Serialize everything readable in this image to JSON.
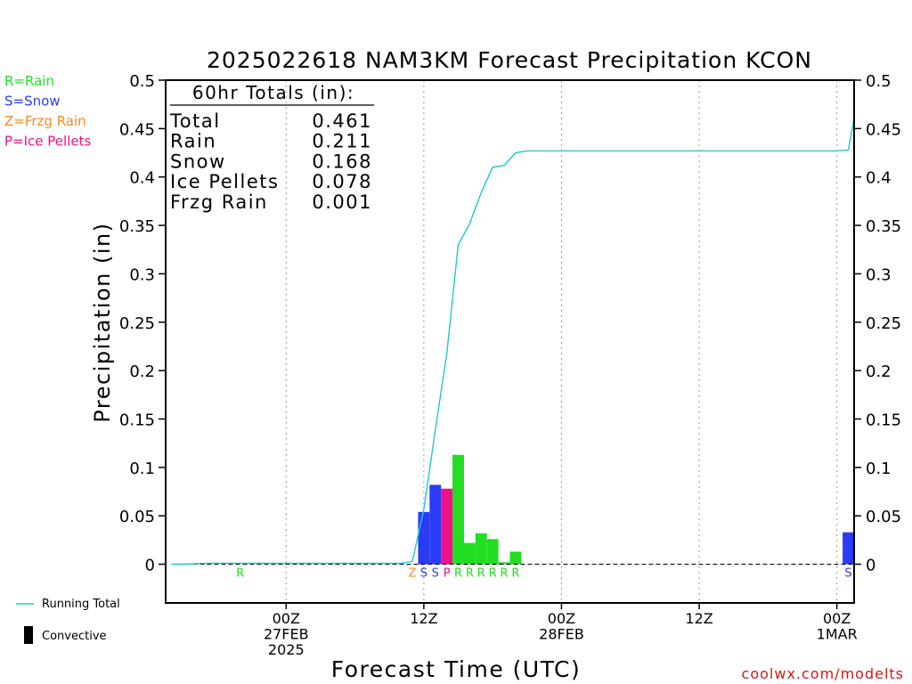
{
  "chart_data": {
    "type": "bar",
    "title": "2025022618 NAM3KM Forecast Precipitation KCON",
    "xlabel": "Forecast Time (UTC)",
    "ylabel": "Precipitation (in)",
    "ylim": [
      -0.04,
      0.5
    ],
    "yticks": [
      "0",
      "0.05",
      "0.1",
      "0.15",
      "0.2",
      "0.25",
      "0.3",
      "0.35",
      "0.4",
      "0.45",
      "0.5"
    ],
    "ytick_values": [
      0,
      0.05,
      0.1,
      0.15,
      0.2,
      0.25,
      0.3,
      0.35,
      0.4,
      0.45,
      0.5
    ],
    "x_hours_range": [
      -4.5,
      55.5
    ],
    "x_grid_hours": [
      6,
      18,
      30,
      42,
      54
    ],
    "x_labels": [
      {
        "hour": 6,
        "lines": [
          "00Z",
          "27FEB",
          "2025"
        ]
      },
      {
        "hour": 18,
        "lines": [
          "12Z"
        ]
      },
      {
        "hour": 30,
        "lines": [
          "00Z",
          "28FEB"
        ]
      },
      {
        "hour": 42,
        "lines": [
          "12Z"
        ]
      },
      {
        "hour": 54,
        "lines": [
          "00Z",
          "1MAR"
        ]
      }
    ],
    "grid": true,
    "precip_type_legend": [
      {
        "label": "R=Rain",
        "color": "#22dd22"
      },
      {
        "label": "S=Snow",
        "color": "#2a3cf5"
      },
      {
        "label": "Z=Frzg Rain",
        "color": "#f08a28"
      },
      {
        "label": "P=Ice Pellets",
        "color": "#ee1188"
      }
    ],
    "series_legend": [
      {
        "label": "Running Total",
        "color": "#22c8cc"
      },
      {
        "label": "Convective",
        "color": "#000000"
      }
    ],
    "totals_box": {
      "title": "60hr Totals (in):",
      "rows": [
        {
          "label": "Total",
          "value": "0.461"
        },
        {
          "label": "Rain",
          "value": "0.211"
        },
        {
          "label": "Snow",
          "value": "0.168"
        },
        {
          "label": "Ice Pellets",
          "value": "0.078"
        },
        {
          "label": "Frzg Rain",
          "value": "0.001"
        }
      ]
    },
    "bars": [
      {
        "hour": 18,
        "value": 0.054,
        "type": "S"
      },
      {
        "hour": 19,
        "value": 0.082,
        "type": "S"
      },
      {
        "hour": 20,
        "value": 0.078,
        "type": "P"
      },
      {
        "hour": 21,
        "value": 0.113,
        "type": "R"
      },
      {
        "hour": 22,
        "value": 0.022,
        "type": "R"
      },
      {
        "hour": 23,
        "value": 0.032,
        "type": "R"
      },
      {
        "hour": 24,
        "value": 0.026,
        "type": "R"
      },
      {
        "hour": 25,
        "value": 0.002,
        "type": "R"
      },
      {
        "hour": 26,
        "value": 0.013,
        "type": "R"
      },
      {
        "hour": 55,
        "value": 0.033,
        "type": "S"
      }
    ],
    "type_markers": [
      {
        "hour": 2,
        "letter": "R"
      },
      {
        "hour": 17,
        "letter": "Z"
      },
      {
        "hour": 18,
        "letter": "S"
      },
      {
        "hour": 19,
        "letter": "S"
      },
      {
        "hour": 20,
        "letter": "P"
      },
      {
        "hour": 21,
        "letter": "R"
      },
      {
        "hour": 22,
        "letter": "R"
      },
      {
        "hour": 23,
        "letter": "R"
      },
      {
        "hour": 24,
        "letter": "R"
      },
      {
        "hour": 25,
        "letter": "R"
      },
      {
        "hour": 26,
        "letter": "R"
      },
      {
        "hour": 55,
        "letter": "S"
      }
    ],
    "running_total": {
      "name": "Running Total",
      "hours": [
        -4,
        -3,
        -2,
        -1,
        0,
        1,
        2,
        3,
        4,
        5,
        6,
        7,
        8,
        9,
        10,
        11,
        12,
        13,
        14,
        15,
        16,
        17,
        18,
        19,
        20,
        21,
        22,
        23,
        24,
        25,
        26,
        27,
        28,
        29,
        30,
        40,
        50,
        54,
        55,
        55.5
      ],
      "values": [
        0,
        0,
        0.0005,
        0.001,
        0.001,
        0.001,
        0.001,
        0.001,
        0.001,
        0.001,
        0.001,
        0.001,
        0.001,
        0.001,
        0.001,
        0.001,
        0.001,
        0.001,
        0.001,
        0.001,
        0.001,
        0.003,
        0.057,
        0.139,
        0.217,
        0.33,
        0.352,
        0.384,
        0.41,
        0.412,
        0.425,
        0.427,
        0.427,
        0.427,
        0.427,
        0.427,
        0.427,
        0.427,
        0.428,
        0.461
      ]
    }
  },
  "footer": {
    "credit": "coolwx.com/modelts"
  }
}
